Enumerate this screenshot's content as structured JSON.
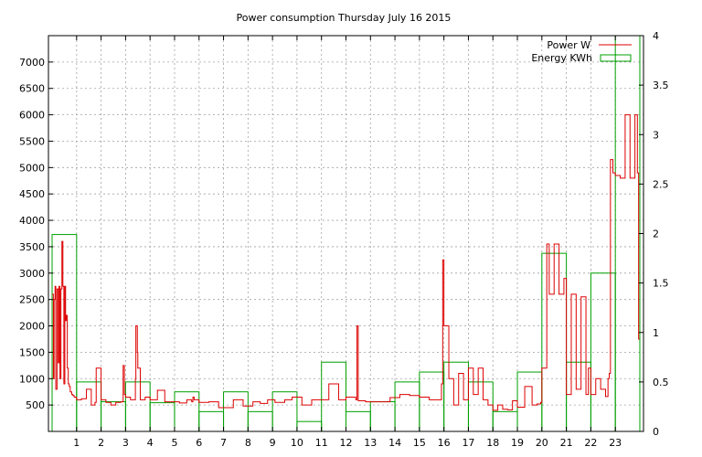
{
  "chart_data": {
    "type": "line",
    "title": "Power consumption Thursday July 16 2015",
    "xlabel": "",
    "ylabel": "",
    "xlim": [
      -0.15,
      24.15
    ],
    "x_ticks": [
      1,
      2,
      3,
      4,
      5,
      6,
      7,
      8,
      9,
      10,
      11,
      12,
      13,
      14,
      15,
      16,
      17,
      18,
      19,
      20,
      21,
      22,
      23
    ],
    "ylim": [
      0,
      7500
    ],
    "y_ticks": [
      500,
      1000,
      1500,
      2000,
      2500,
      3000,
      3500,
      4000,
      4500,
      5000,
      5500,
      6000,
      6500,
      7000
    ],
    "y2lim": [
      0,
      4
    ],
    "y2_ticks": [
      "0",
      "0.5",
      "1",
      "1.5",
      "2",
      "2.5",
      "3",
      "3.5",
      "4"
    ],
    "grid": true,
    "legend_position": "top-right",
    "colors": {
      "power": "#dd0000",
      "energy": "#00a000",
      "grid": "#a0a0a0"
    },
    "series": [
      {
        "name": "Power W",
        "type": "line",
        "axis": "left",
        "x": [
          0.0,
          0.05,
          0.08,
          0.12,
          0.15,
          0.2,
          0.25,
          0.28,
          0.32,
          0.36,
          0.4,
          0.44,
          0.48,
          0.52,
          0.55,
          0.58,
          0.62,
          0.66,
          0.7,
          0.74,
          0.8,
          0.85,
          0.9,
          1.0,
          1.2,
          1.4,
          1.6,
          1.75,
          1.8,
          2.0,
          2.2,
          2.4,
          2.6,
          2.8,
          2.9,
          2.95,
          3.0,
          3.2,
          3.4,
          3.42,
          3.48,
          3.5,
          3.6,
          3.8,
          4.0,
          4.3,
          4.6,
          4.9,
          5.2,
          5.5,
          5.7,
          5.75,
          5.8,
          6.0,
          6.4,
          6.8,
          7.1,
          7.4,
          7.8,
          8.2,
          8.5,
          8.8,
          9.1,
          9.5,
          9.8,
          10.2,
          10.6,
          11.0,
          11.3,
          11.7,
          12.0,
          12.4,
          12.45,
          12.5,
          12.8,
          13.3,
          13.8,
          14.2,
          14.6,
          15.0,
          15.4,
          15.8,
          15.9,
          15.95,
          16.0,
          16.2,
          16.4,
          16.6,
          16.8,
          17.0,
          17.2,
          17.4,
          17.6,
          17.8,
          18.0,
          18.2,
          18.4,
          18.6,
          18.8,
          19.0,
          19.3,
          19.6,
          19.8,
          19.95,
          20.0,
          20.2,
          20.3,
          20.5,
          20.7,
          20.9,
          21.0,
          21.2,
          21.4,
          21.6,
          21.8,
          21.9,
          22.0,
          22.2,
          22.4,
          22.6,
          22.7,
          22.75,
          22.8,
          22.9,
          23.0,
          23.2,
          23.4,
          23.6,
          23.8,
          23.9,
          23.95
        ],
        "y": [
          2600,
          1000,
          2500,
          2750,
          800,
          2700,
          1300,
          2750,
          1000,
          2700,
          3600,
          2750,
          900,
          2750,
          2100,
          2200,
          1200,
          900,
          850,
          750,
          700,
          680,
          650,
          600,
          620,
          800,
          500,
          550,
          1200,
          600,
          550,
          500,
          550,
          560,
          1250,
          700,
          650,
          600,
          1000,
          2000,
          1500,
          1200,
          600,
          650,
          600,
          780,
          560,
          560,
          540,
          600,
          560,
          650,
          600,
          550,
          560,
          450,
          450,
          600,
          480,
          560,
          530,
          600,
          550,
          600,
          650,
          500,
          600,
          600,
          900,
          600,
          650,
          600,
          2000,
          580,
          560,
          560,
          640,
          700,
          680,
          650,
          600,
          600,
          900,
          3250,
          2000,
          1000,
          500,
          1100,
          600,
          1200,
          700,
          1200,
          600,
          500,
          400,
          500,
          420,
          410,
          580,
          460,
          850,
          500,
          520,
          550,
          1200,
          3550,
          2600,
          3550,
          2600,
          2900,
          700,
          2600,
          800,
          2550,
          700,
          1200,
          700,
          1000,
          800,
          660,
          1000,
          1100,
          5150,
          4900,
          4850,
          4800,
          6000,
          4800,
          6000,
          4900,
          1750
        ]
      },
      {
        "name": "Energy KWh",
        "type": "bar",
        "axis": "right",
        "x": [
          0,
          1,
          2,
          3,
          4,
          5,
          6,
          7,
          8,
          9,
          10,
          11,
          12,
          13,
          14,
          15,
          16,
          17,
          18,
          19,
          20,
          21,
          22,
          23
        ],
        "values": [
          1.99,
          0.5,
          0.3,
          0.5,
          0.29,
          0.4,
          0.2,
          0.4,
          0.2,
          0.4,
          0.1,
          0.7,
          0.2,
          0.3,
          0.5,
          0.6,
          0.7,
          0.5,
          0.2,
          0.6,
          1.8,
          0.7,
          1.6,
          4.0
        ]
      }
    ]
  }
}
